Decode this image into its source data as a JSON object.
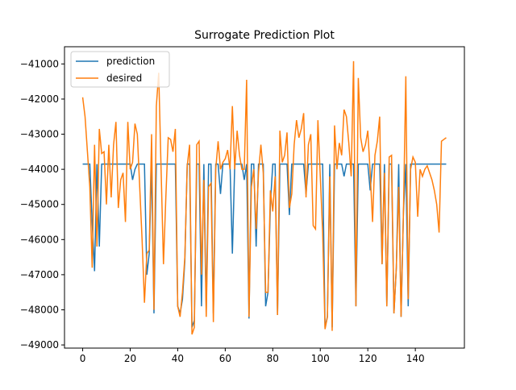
{
  "chart_data": {
    "type": "line",
    "title": "Surrogate Prediction Plot",
    "x": [
      0,
      1,
      2,
      3,
      4,
      5,
      6,
      7,
      8,
      9,
      10,
      11,
      12,
      13,
      14,
      15,
      16,
      17,
      18,
      19,
      20,
      21,
      22,
      23,
      24,
      25,
      26,
      27,
      28,
      29,
      30,
      31,
      32,
      33,
      34,
      35,
      36,
      37,
      38,
      39,
      40,
      41,
      42,
      43,
      44,
      45,
      46,
      47,
      48,
      49,
      50,
      51,
      52,
      53,
      54,
      55,
      56,
      57,
      58,
      59,
      60,
      61,
      62,
      63,
      64,
      65,
      66,
      67,
      68,
      69,
      70,
      71,
      72,
      73,
      74,
      75,
      76,
      77,
      78,
      79,
      80,
      81,
      82,
      83,
      84,
      85,
      86,
      87,
      88,
      89,
      90,
      91,
      92,
      93,
      94,
      95,
      96,
      97,
      98,
      99,
      100,
      101,
      102,
      103,
      104,
      105,
      106,
      107,
      108,
      109,
      110,
      111,
      112,
      113,
      114,
      115,
      116,
      117,
      118,
      119,
      120,
      121,
      122,
      123,
      124,
      125,
      126,
      127,
      128,
      129,
      130,
      131,
      132,
      133,
      134,
      135,
      136,
      137,
      138,
      139,
      140,
      141,
      142,
      143,
      144,
      145,
      146,
      147,
      148,
      149,
      150,
      151,
      152,
      153
    ],
    "series": [
      {
        "name": "prediction",
        "color": "#1f77b4",
        "values": [
          -43850,
          -43850,
          -43850,
          -43850,
          -45500,
          -46900,
          -43850,
          -46200,
          -43850,
          -43850,
          -43850,
          -43850,
          -43850,
          -43850,
          -43850,
          -43850,
          -43850,
          -43850,
          -43850,
          -43850,
          -43850,
          -44300,
          -44000,
          -43850,
          -43850,
          -43850,
          -43850,
          -47000,
          -46400,
          -43850,
          -48100,
          -43850,
          -43850,
          -43850,
          -43850,
          -43850,
          -43850,
          -43850,
          -43850,
          -43850,
          -47900,
          -48100,
          -47700,
          -46600,
          -43850,
          -43850,
          -48500,
          -48300,
          -43850,
          -43850,
          -47900,
          -43850,
          -48000,
          -43850,
          -43850,
          -48100,
          -43850,
          -43850,
          -44700,
          -43850,
          -43850,
          -43850,
          -43850,
          -46400,
          -43850,
          -43850,
          -43850,
          -43850,
          -44300,
          -43850,
          -48250,
          -43850,
          -43850,
          -46200,
          -43850,
          -43850,
          -43850,
          -47900,
          -47500,
          -45000,
          -43850,
          -43850,
          -48150,
          -43850,
          -43850,
          -43850,
          -43850,
          -45300,
          -43850,
          -43850,
          -43850,
          -43850,
          -43850,
          -43850,
          -44700,
          -43850,
          -43850,
          -43850,
          -43850,
          -43850,
          -43850,
          -43850,
          -48500,
          -48200,
          -43850,
          -48500,
          -43850,
          -43850,
          -43850,
          -43850,
          -44200,
          -43850,
          -43850,
          -43850,
          -43850,
          -47900,
          -43850,
          -43850,
          -43850,
          -43850,
          -43850,
          -44600,
          -43850,
          -43850,
          -43850,
          -43850,
          -46700,
          -43850,
          -47900,
          -43850,
          -43850,
          -48100,
          -46800,
          -43850,
          -48200,
          -45200,
          -43850,
          -47900,
          -43850,
          -43850,
          -43850,
          -43850,
          -43850,
          -43850,
          -43850,
          -43850,
          -43850,
          -43850,
          -43850,
          -43850,
          -43850,
          -43850,
          -43850,
          -43850
        ]
      },
      {
        "name": "desired",
        "color": "#ff7f0e",
        "values": [
          -41950,
          -42500,
          -43500,
          -44500,
          -46800,
          -43300,
          -46200,
          -42850,
          -43550,
          -43500,
          -45000,
          -43300,
          -44800,
          -43300,
          -42650,
          -45100,
          -44300,
          -44100,
          -45500,
          -42650,
          -44000,
          -43800,
          -42700,
          -43000,
          -44500,
          -46000,
          -47800,
          -46400,
          -46300,
          -43000,
          -48000,
          -42200,
          -41250,
          -44000,
          -46700,
          -44800,
          -43100,
          -43150,
          -43500,
          -42850,
          -47900,
          -48200,
          -47500,
          -46500,
          -43900,
          -43300,
          -48700,
          -48500,
          -43300,
          -43200,
          -47000,
          -44300,
          -48200,
          -44500,
          -44400,
          -48350,
          -44000,
          -43200,
          -44000,
          -43800,
          -43700,
          -43450,
          -44000,
          -42200,
          -44000,
          -42900,
          -43600,
          -44000,
          -44000,
          -41450,
          -48200,
          -44500,
          -44000,
          -45700,
          -44100,
          -43300,
          -44100,
          -47500,
          -47500,
          -44600,
          -45200,
          -44200,
          -48150,
          -42900,
          -43800,
          -43600,
          -42950,
          -45100,
          -44700,
          -43300,
          -42600,
          -43100,
          -42850,
          -42400,
          -44800,
          -43300,
          -43000,
          -45600,
          -45700,
          -42600,
          -44200,
          -45800,
          -48550,
          -48200,
          -44200,
          -48600,
          -42750,
          -44000,
          -43250,
          -43600,
          -42300,
          -42500,
          -43250,
          -44200,
          -40920,
          -47900,
          -41400,
          -43100,
          -43500,
          -43300,
          -42900,
          -44100,
          -45500,
          -43600,
          -43200,
          -42500,
          -46700,
          -44100,
          -47900,
          -43650,
          -43600,
          -48100,
          -46800,
          -44500,
          -48200,
          -45200,
          -41350,
          -47700,
          -44000,
          -43650,
          -43800,
          -45350,
          -44000,
          -44200,
          -44000,
          -43900,
          -44100,
          -44300,
          -44600,
          -45000,
          -45800,
          -43200,
          -43150,
          -43100
        ]
      }
    ],
    "xlim": [
      -7.65,
      160.65
    ],
    "ylim": [
      -49090,
      -40510
    ],
    "xticks": [
      0,
      20,
      40,
      60,
      80,
      100,
      120,
      140
    ],
    "yticks": [
      {
        "value": -49000,
        "label": "−49000"
      },
      {
        "value": -48000,
        "label": "−48000"
      },
      {
        "value": -47000,
        "label": "−47000"
      },
      {
        "value": -46000,
        "label": "−46000"
      },
      {
        "value": -45000,
        "label": "−45000"
      },
      {
        "value": -44000,
        "label": "−44000"
      },
      {
        "value": -43000,
        "label": "−43000"
      },
      {
        "value": -42000,
        "label": "−42000"
      },
      {
        "value": -41000,
        "label": "−41000"
      }
    ],
    "legend": "upper left"
  }
}
